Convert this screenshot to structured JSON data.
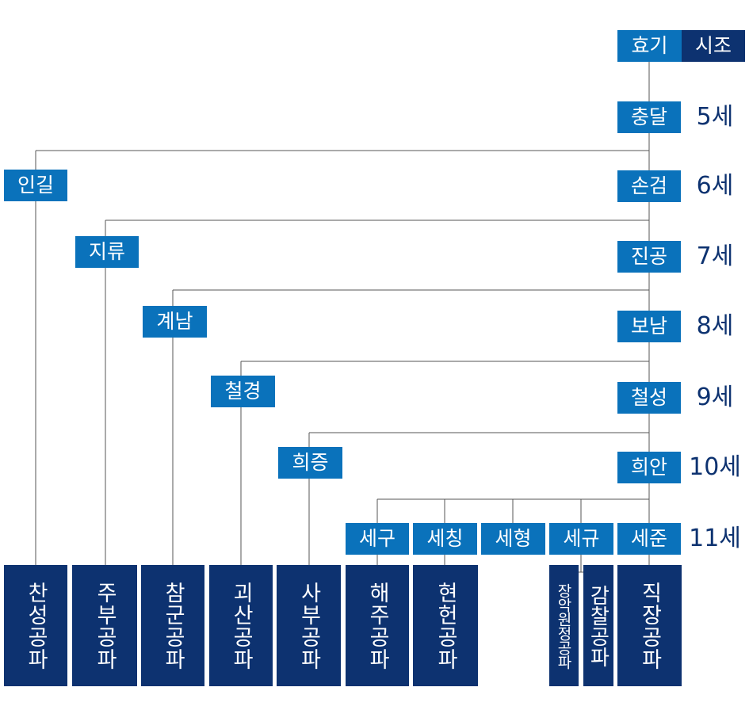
{
  "colors": {
    "node": "#0a72bb",
    "dark": "#0d3270",
    "line": "#555555"
  },
  "title": {
    "first": "효기",
    "second": "시조"
  },
  "main_line": [
    {
      "name": "충달",
      "gen": "5세"
    },
    {
      "name": "손검",
      "gen": "6세"
    },
    {
      "name": "진공",
      "gen": "7세"
    },
    {
      "name": "보남",
      "gen": "8세"
    },
    {
      "name": "철성",
      "gen": "9세"
    },
    {
      "name": "희안",
      "gen": "10세"
    },
    {
      "name": "세준",
      "gen": "11세"
    }
  ],
  "side_line": [
    "인길",
    "지류",
    "계남",
    "철경",
    "희증"
  ],
  "gen11_siblings": [
    "세구",
    "세칭",
    "세형",
    "세규"
  ],
  "branches": [
    "찬성공파",
    "주부공파",
    "참군공파",
    "괴산공파",
    "사부공파",
    "해주공파",
    "현헌공파",
    "장악원정공파",
    "감찰공파",
    "직장공파"
  ]
}
